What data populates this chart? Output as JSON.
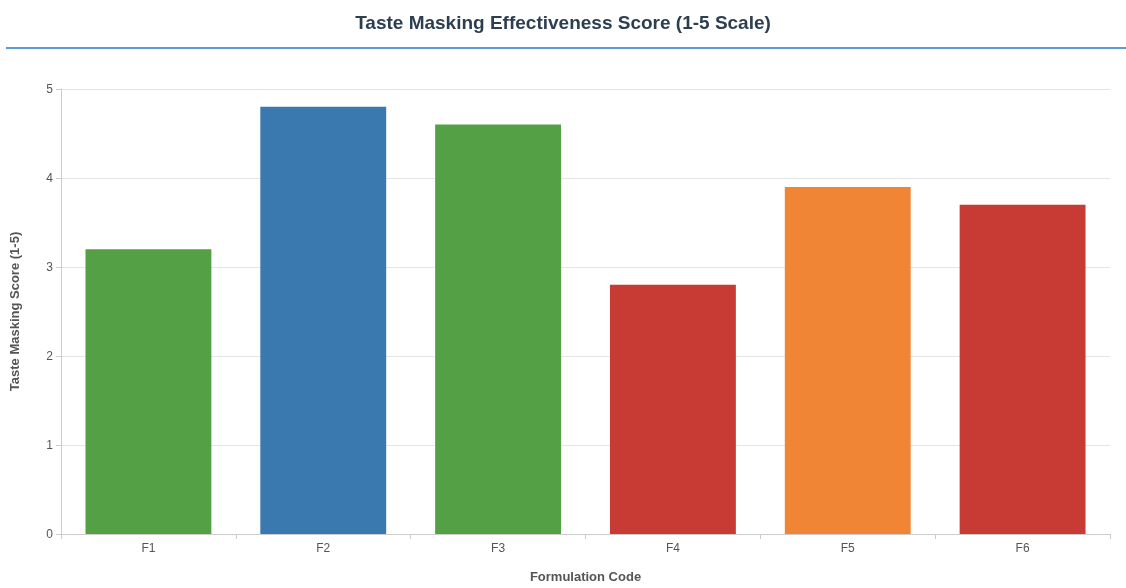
{
  "chart_data": {
    "type": "bar",
    "title": "Taste Masking Effectiveness Score (1-5 Scale)",
    "xlabel": "Formulation Code",
    "ylabel": "Taste Masking Score (1-5)",
    "categories": [
      "F1",
      "F2",
      "F3",
      "F4",
      "F5",
      "F6"
    ],
    "values": [
      3.2,
      4.8,
      4.6,
      2.8,
      3.9,
      3.7
    ],
    "colors": [
      "#54a044",
      "#3a78b0",
      "#54a044",
      "#c83a34",
      "#ef8535",
      "#c83a34"
    ],
    "ylim": [
      0,
      5
    ],
    "yticks": [
      0,
      1,
      2,
      3,
      4,
      5
    ],
    "grid": "y"
  }
}
